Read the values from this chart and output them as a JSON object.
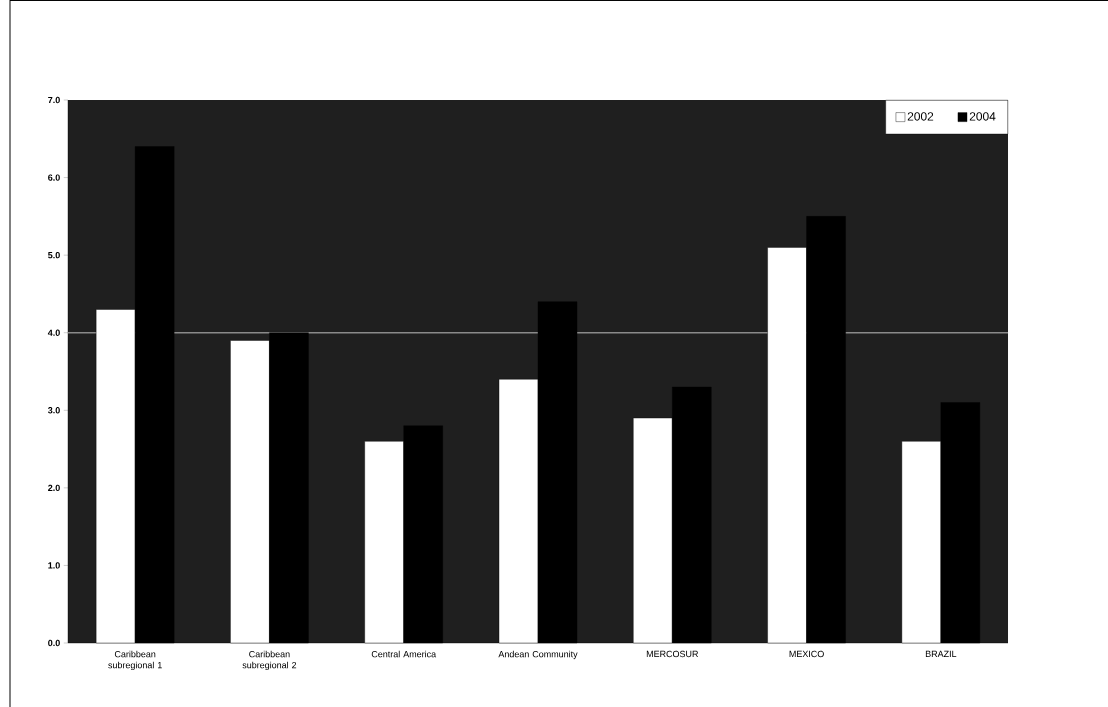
{
  "chart_data": {
    "type": "bar",
    "categories": [
      "Caribbean subregional 1",
      "Caribbean subregional 2",
      "Central America",
      "Andean Community",
      "MERCOSUR",
      "MEXICO",
      "BRAZIL"
    ],
    "series": [
      {
        "name": "2002",
        "color": "#ffffff",
        "values": [
          4.3,
          3.9,
          2.6,
          3.4,
          2.9,
          5.1,
          2.6
        ]
      },
      {
        "name": "2004",
        "color": "#000000",
        "values": [
          6.4,
          4.0,
          2.8,
          4.4,
          3.3,
          5.5,
          3.1
        ]
      }
    ],
    "ylim": [
      0,
      7
    ],
    "yticks": [
      {
        "value": 0,
        "label": "0.0"
      },
      {
        "value": 1,
        "label": "1.0"
      },
      {
        "value": 2,
        "label": "2.0"
      },
      {
        "value": 3,
        "label": "3.0"
      },
      {
        "value": 4,
        "label": "4.0"
      },
      {
        "value": 5,
        "label": "5.0"
      },
      {
        "value": 6,
        "label": "6.0"
      },
      {
        "value": 7,
        "label": "7.0"
      }
    ],
    "ref_lines": [
      {
        "axis": "y",
        "value": 4,
        "color": "#8a8a8a"
      }
    ],
    "grid": false,
    "legend": "top right"
  }
}
